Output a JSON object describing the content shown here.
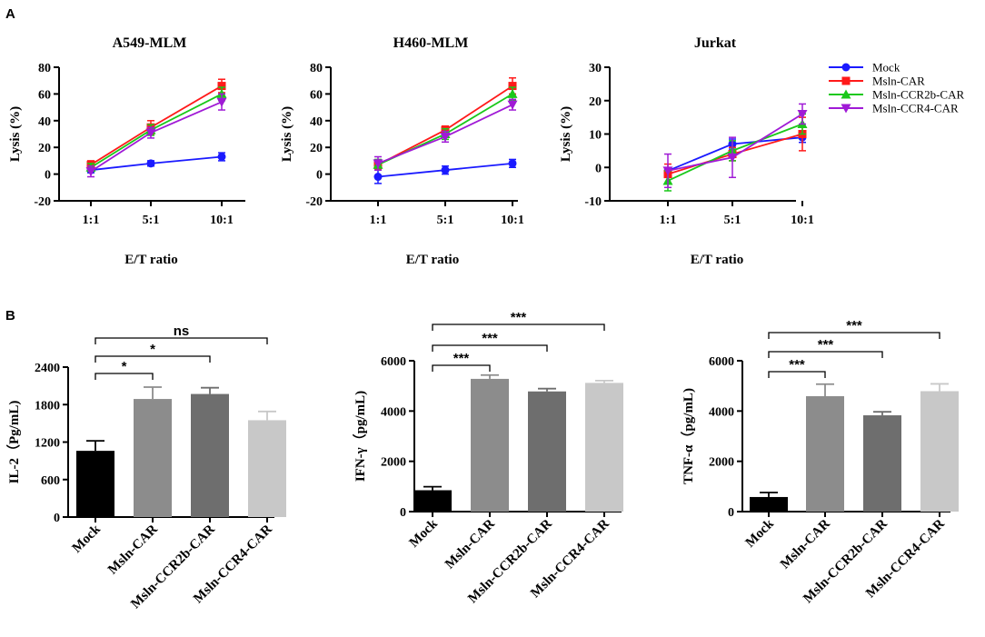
{
  "panel_letters": {
    "a": "A",
    "b": "B"
  },
  "legend": {
    "entries": [
      {
        "name": "Mock",
        "color": "#1a1aff",
        "marker": "circle"
      },
      {
        "name": "Msln-CAR",
        "color": "#ff1a1a",
        "marker": "square"
      },
      {
        "name": "Msln-CCR2b-CAR",
        "color": "#1ac81a",
        "marker": "triangle-up"
      },
      {
        "name": "Msln-CCR4-CAR",
        "color": "#a01ad6",
        "marker": "triangle-down"
      }
    ]
  },
  "chart_data": [
    {
      "type": "line",
      "title": "A549-MLM",
      "xlabel": "E/T ratio",
      "ylabel": "Lysis (%)",
      "categories": [
        "1:1",
        "5:1",
        "10:1"
      ],
      "ylim": [
        -20,
        80
      ],
      "yticks": [
        -20,
        0,
        20,
        40,
        60,
        80
      ],
      "series": [
        {
          "name": "Mock",
          "values": [
            3,
            8,
            13
          ],
          "errors": [
            2,
            2,
            3
          ]
        },
        {
          "name": "Msln-CAR",
          "values": [
            7,
            35,
            66
          ],
          "errors": [
            3,
            5,
            5
          ]
        },
        {
          "name": "Msln-CCR2b-CAR",
          "values": [
            5,
            33,
            60
          ],
          "errors": [
            3,
            4,
            5
          ]
        },
        {
          "name": "Msln-CCR4-CAR",
          "values": [
            2,
            31,
            54
          ],
          "errors": [
            4,
            4,
            6
          ]
        }
      ]
    },
    {
      "type": "line",
      "title": "H460-MLM",
      "xlabel": "E/T ratio",
      "ylabel": "Lysis (%)",
      "categories": [
        "1:1",
        "5:1",
        "10:1"
      ],
      "ylim": [
        -20,
        80
      ],
      "yticks": [
        -20,
        0,
        20,
        40,
        60,
        80
      ],
      "series": [
        {
          "name": "Mock",
          "values": [
            -2,
            3,
            8
          ],
          "errors": [
            5,
            3,
            3
          ]
        },
        {
          "name": "Msln-CAR",
          "values": [
            7,
            33,
            66
          ],
          "errors": [
            3,
            3,
            6
          ]
        },
        {
          "name": "Msln-CCR2b-CAR",
          "values": [
            7,
            30,
            60
          ],
          "errors": [
            4,
            4,
            5
          ]
        },
        {
          "name": "Msln-CCR4-CAR",
          "values": [
            8,
            28,
            52
          ],
          "errors": [
            5,
            4,
            4
          ]
        }
      ]
    },
    {
      "type": "line",
      "title": "Jurkat",
      "xlabel": "E/T ratio",
      "ylabel": "Lysis (%)",
      "categories": [
        "1:1",
        "5:1",
        "10:1"
      ],
      "ylim": [
        -10,
        30
      ],
      "yticks": [
        -10,
        0,
        10,
        20,
        30
      ],
      "series": [
        {
          "name": "Mock",
          "values": [
            -1,
            7,
            9
          ],
          "errors": [
            1,
            1.5,
            1.5
          ]
        },
        {
          "name": "Msln-CAR",
          "values": [
            -2,
            4,
            10
          ],
          "errors": [
            3,
            2,
            5
          ]
        },
        {
          "name": "Msln-CCR2b-CAR",
          "values": [
            -4,
            5,
            13
          ],
          "errors": [
            3,
            3,
            3
          ]
        },
        {
          "name": "Msln-CCR4-CAR",
          "values": [
            -1,
            3,
            16
          ],
          "errors": [
            5,
            6,
            3
          ]
        }
      ]
    },
    {
      "type": "bar",
      "ylabel": "IL-2（Pg/mL)",
      "categories": [
        "Mock",
        "Msln-CAR",
        "Msln-CCR2b-CAR",
        "Msln-CCR4-CAR"
      ],
      "values": [
        1060,
        1890,
        1970,
        1550
      ],
      "errors": [
        160,
        190,
        100,
        140
      ],
      "colors": [
        "#000000",
        "#8c8c8c",
        "#6e6e6e",
        "#c8c8c8"
      ],
      "ylim": [
        0,
        2400
      ],
      "yticks": [
        0,
        600,
        1200,
        1800,
        2400
      ],
      "significance": [
        {
          "from": 0,
          "to": 1,
          "label": "*"
        },
        {
          "from": 0,
          "to": 2,
          "label": "*"
        },
        {
          "from": 0,
          "to": 3,
          "label": "ns"
        }
      ]
    },
    {
      "type": "bar",
      "ylabel": "IFN-γ（pg/mL)",
      "categories": [
        "Mock",
        "Msln-CAR",
        "Msln-CCR2b-CAR",
        "Msln-CCR4-CAR"
      ],
      "values": [
        850,
        5280,
        4780,
        5120
      ],
      "errors": [
        140,
        150,
        110,
        90
      ],
      "colors": [
        "#000000",
        "#8c8c8c",
        "#6e6e6e",
        "#c8c8c8"
      ],
      "ylim": [
        0,
        6000
      ],
      "yticks": [
        0,
        2000,
        4000,
        6000
      ],
      "significance": [
        {
          "from": 0,
          "to": 1,
          "label": "***"
        },
        {
          "from": 0,
          "to": 2,
          "label": "***"
        },
        {
          "from": 0,
          "to": 3,
          "label": "***"
        }
      ]
    },
    {
      "type": "bar",
      "ylabel": "TNF-α（pg/mL)",
      "categories": [
        "Mock",
        "Msln-CAR",
        "Msln-CCR2b-CAR",
        "Msln-CCR4-CAR"
      ],
      "values": [
        580,
        4590,
        3830,
        4790
      ],
      "errors": [
        180,
        480,
        140,
        290
      ],
      "colors": [
        "#000000",
        "#8c8c8c",
        "#6e6e6e",
        "#c8c8c8"
      ],
      "ylim": [
        0,
        6000
      ],
      "yticks": [
        0,
        2000,
        4000,
        6000
      ],
      "significance": [
        {
          "from": 0,
          "to": 1,
          "label": "***"
        },
        {
          "from": 0,
          "to": 2,
          "label": "***"
        },
        {
          "from": 0,
          "to": 3,
          "label": "***"
        }
      ]
    }
  ]
}
